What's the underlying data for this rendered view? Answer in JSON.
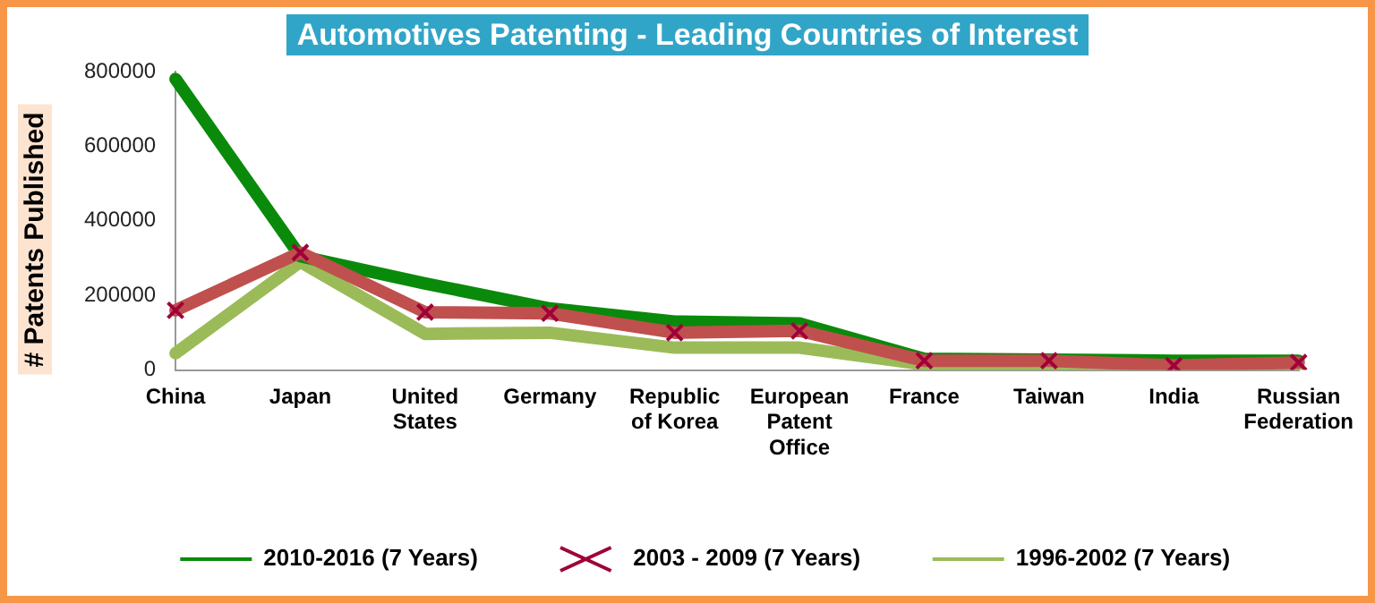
{
  "chart_data": {
    "type": "line",
    "title": "Automotives Patenting - Leading Countries of Interest",
    "ylabel": "# Patents Published",
    "categories": [
      "China",
      "Japan",
      "United States",
      "Germany",
      "Republic of Korea",
      "European Patent Office",
      "France",
      "Taiwan",
      "India",
      "Russian Federation"
    ],
    "series": [
      {
        "name": "2010-2016 (7 Years)",
        "color": "#0a8a0a",
        "marker": "none",
        "values": [
          780000,
          305000,
          232000,
          165000,
          130000,
          125000,
          30000,
          28000,
          25000,
          25000
        ]
      },
      {
        "name": "2003 - 2009 (7 Years)",
        "color": "#c0504d",
        "marker": "cross",
        "values": [
          160000,
          315000,
          155000,
          152000,
          100000,
          105000,
          25000,
          25000,
          12000,
          20000
        ]
      },
      {
        "name": "1996-2002 (7 Years)",
        "color": "#9bbb59",
        "marker": "none",
        "values": [
          45000,
          290000,
          97000,
          100000,
          60000,
          60000,
          15000,
          12000,
          10000,
          12000
        ]
      }
    ],
    "ylim": [
      0,
      800000
    ],
    "yticks": [
      0,
      200000,
      400000,
      600000,
      800000
    ],
    "grid": false,
    "legend": "bottom"
  }
}
